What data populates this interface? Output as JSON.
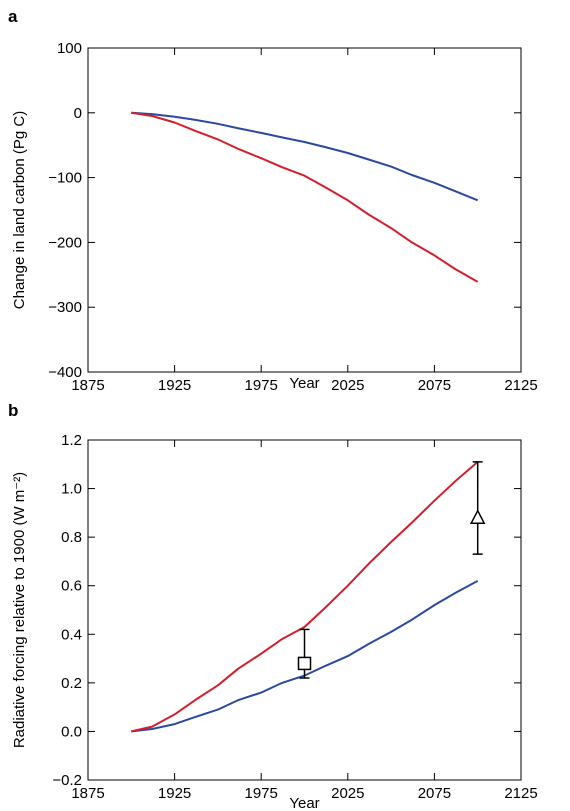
{
  "chart_data": [
    {
      "type": "line",
      "panel_label": "a",
      "xlabel": "Year",
      "ylabel": "Change in land carbon (Pg C)",
      "xlim": [
        1875,
        2125
      ],
      "ylim": [
        -400,
        100
      ],
      "xticks": [
        1875,
        1925,
        1975,
        2025,
        2075,
        2125
      ],
      "yticks": [
        -400,
        -300,
        -200,
        -100,
        0,
        100
      ],
      "ytick_labels": [
        "−400",
        "−300",
        "−200",
        "−100",
        "0",
        "100"
      ],
      "series": [
        {
          "color": "#2a4aa0",
          "x": [
            1900,
            1912,
            1925,
            1937,
            1950,
            1962,
            1975,
            1987,
            2000,
            2012,
            2025,
            2037,
            2050,
            2062,
            2075,
            2087,
            2100
          ],
          "y": [
            0,
            -2,
            -6,
            -11,
            -17,
            -24,
            -31,
            -38,
            -45,
            -53,
            -62,
            -72,
            -83,
            -96,
            -108,
            -121,
            -135
          ]
        },
        {
          "color": "#d21f2b",
          "x": [
            1900,
            1912,
            1925,
            1937,
            1950,
            1962,
            1975,
            1987,
            2000,
            2012,
            2025,
            2037,
            2050,
            2062,
            2075,
            2087,
            2100
          ],
          "y": [
            0,
            -5,
            -15,
            -28,
            -41,
            -56,
            -70,
            -84,
            -97,
            -115,
            -135,
            -157,
            -178,
            -200,
            -220,
            -241,
            -261
          ]
        }
      ]
    },
    {
      "type": "line",
      "panel_label": "b",
      "xlabel": "Year",
      "ylabel": "Radiative forcing relative to 1900 (W m⁻²)",
      "xlim": [
        1875,
        2125
      ],
      "ylim": [
        -0.2,
        1.2
      ],
      "xticks": [
        1875,
        1925,
        1975,
        2025,
        2075,
        2125
      ],
      "yticks": [
        -0.2,
        0.0,
        0.2,
        0.4,
        0.6,
        0.8,
        1.0,
        1.2
      ],
      "ytick_labels": [
        "−0.2",
        "0.0",
        "0.2",
        "0.4",
        "0.6",
        "0.8",
        "1.0",
        "1.2"
      ],
      "series": [
        {
          "color": "#2a4aa0",
          "x": [
            1900,
            1912,
            1925,
            1937,
            1950,
            1962,
            1975,
            1987,
            2000,
            2012,
            2025,
            2037,
            2050,
            2062,
            2075,
            2087,
            2100
          ],
          "y": [
            0,
            0.01,
            0.03,
            0.06,
            0.09,
            0.13,
            0.16,
            0.2,
            0.23,
            0.27,
            0.31,
            0.36,
            0.41,
            0.46,
            0.52,
            0.57,
            0.62
          ]
        },
        {
          "color": "#d21f2b",
          "x": [
            1900,
            1912,
            1925,
            1937,
            1950,
            1962,
            1975,
            1987,
            2000,
            2012,
            2025,
            2037,
            2050,
            2062,
            2075,
            2087,
            2100
          ],
          "y": [
            0,
            0.02,
            0.07,
            0.13,
            0.19,
            0.26,
            0.32,
            0.38,
            0.43,
            0.51,
            0.6,
            0.69,
            0.78,
            0.86,
            0.95,
            1.03,
            1.11
          ]
        }
      ],
      "markers": [
        {
          "shape": "square",
          "x": 2000,
          "y": 0.28,
          "yerr_low": 0.22,
          "yerr_high": 0.42
        },
        {
          "shape": "triangle",
          "x": 2100,
          "y": 0.88,
          "yerr_low": 0.73,
          "yerr_high": 1.11
        }
      ]
    }
  ]
}
